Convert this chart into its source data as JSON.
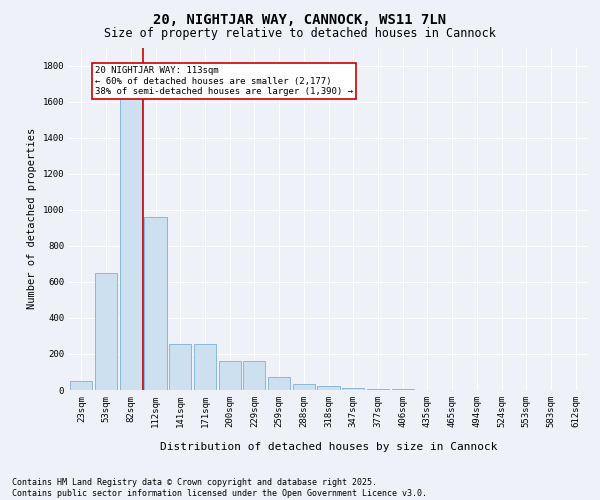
{
  "title": "20, NIGHTJAR WAY, CANNOCK, WS11 7LN",
  "subtitle": "Size of property relative to detached houses in Cannock",
  "xlabel": "Distribution of detached houses by size in Cannock",
  "ylabel": "Number of detached properties",
  "categories": [
    "23sqm",
    "53sqm",
    "82sqm",
    "112sqm",
    "141sqm",
    "171sqm",
    "200sqm",
    "229sqm",
    "259sqm",
    "288sqm",
    "318sqm",
    "347sqm",
    "377sqm",
    "406sqm",
    "435sqm",
    "465sqm",
    "494sqm",
    "524sqm",
    "553sqm",
    "583sqm",
    "612sqm"
  ],
  "values": [
    50,
    650,
    1680,
    960,
    255,
    255,
    160,
    160,
    70,
    35,
    20,
    10,
    5,
    3,
    2,
    1,
    1,
    1,
    1,
    1,
    1
  ],
  "bar_color": "#cce0f0",
  "bar_edge_color": "#7ab0d4",
  "marker_line_color": "#cc0000",
  "annotation_text": "20 NIGHTJAR WAY: 113sqm\n← 60% of detached houses are smaller (2,177)\n38% of semi-detached houses are larger (1,390) →",
  "annotation_box_color": "white",
  "annotation_box_edge_color": "#cc0000",
  "ylim": [
    0,
    1900
  ],
  "yticks": [
    0,
    200,
    400,
    600,
    800,
    1000,
    1200,
    1400,
    1600,
    1800
  ],
  "background_color": "#eef2f8",
  "plot_bg_color": "#eef2f8",
  "grid_color": "white",
  "footer_line1": "Contains HM Land Registry data © Crown copyright and database right 2025.",
  "footer_line2": "Contains public sector information licensed under the Open Government Licence v3.0.",
  "title_fontsize": 10,
  "subtitle_fontsize": 8.5,
  "xlabel_fontsize": 8,
  "ylabel_fontsize": 7.5,
  "tick_fontsize": 6.5,
  "annotation_fontsize": 6.5,
  "footer_fontsize": 6.0
}
